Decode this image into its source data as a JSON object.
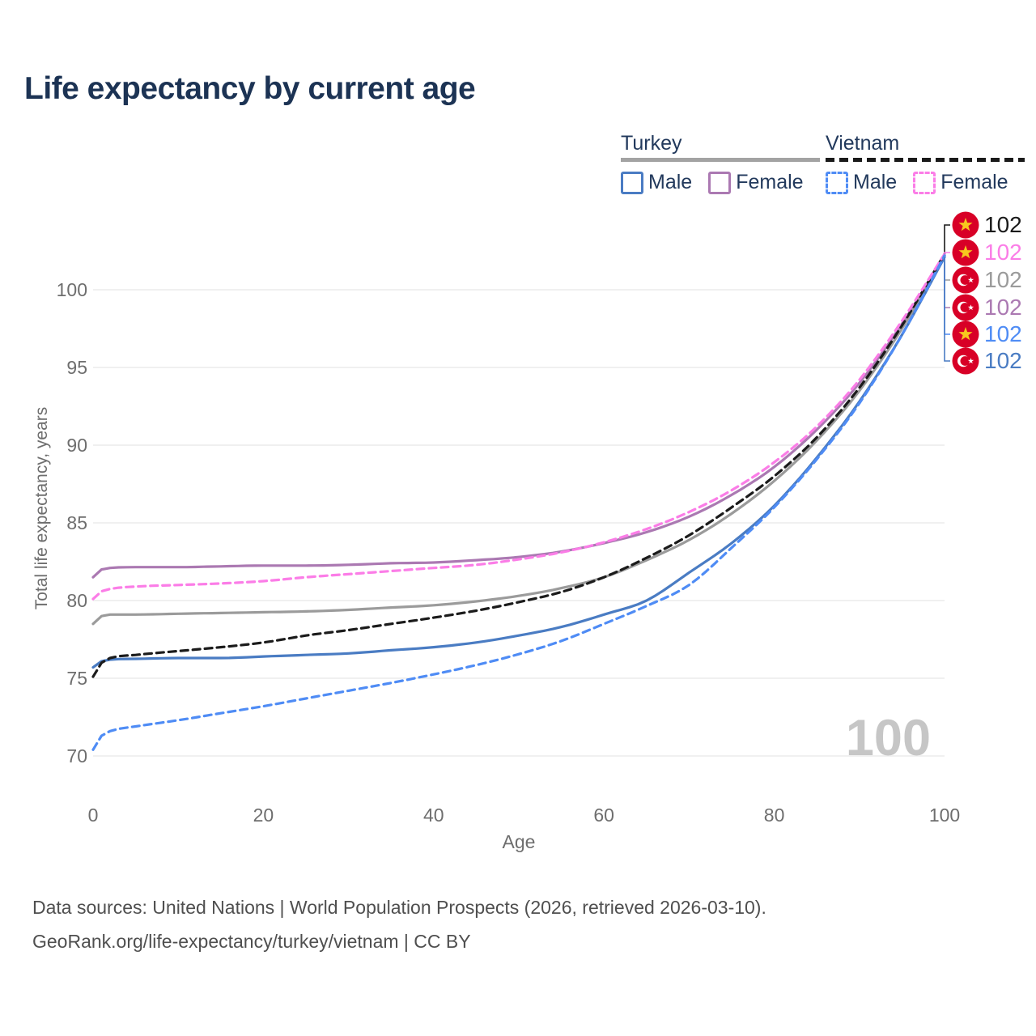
{
  "title": "Life expectancy by current age",
  "legend": {
    "groups": [
      {
        "label": "Turkey",
        "underline_style": "solid",
        "underline_color": "#a3a3a3",
        "items": [
          {
            "label": "Male",
            "color": "#4a7cc3",
            "dashed": false
          },
          {
            "label": "Female",
            "color": "#ab79b2",
            "dashed": false
          }
        ]
      },
      {
        "label": "Vietnam",
        "underline_style": "dashed",
        "underline_color": "#1a1a1a",
        "items": [
          {
            "label": "Male",
            "color": "#4f8cf5",
            "dashed": true
          },
          {
            "label": "Female",
            "color": "#fb7de7",
            "dashed": true
          }
        ]
      }
    ]
  },
  "axes": {
    "y_title": "Total life expectancy, years",
    "x_title": "Age",
    "y_ticks": [
      70,
      75,
      80,
      85,
      90,
      95,
      100
    ],
    "x_ticks": [
      0,
      20,
      40,
      60,
      80,
      100
    ]
  },
  "watermark": "100",
  "flag_colors": {
    "red": "#d80027",
    "star_gold": "#f7c81e",
    "white": "#ffffff"
  },
  "end_labels": [
    {
      "flag": "vietnam",
      "value": "102",
      "color": "#1a1a1a",
      "series": "vietnam_total"
    },
    {
      "flag": "vietnam",
      "value": "102",
      "color": "#fb7de7",
      "series": "vietnam_female"
    },
    {
      "flag": "turkey",
      "value": "102",
      "color": "#9b9b9b",
      "series": "turkey_total"
    },
    {
      "flag": "turkey",
      "value": "102",
      "color": "#ab79b2",
      "series": "turkey_female"
    },
    {
      "flag": "vietnam",
      "value": "102",
      "color": "#4f8cf5",
      "series": "vietnam_male"
    },
    {
      "flag": "turkey",
      "value": "102",
      "color": "#4a7cc3",
      "series": "turkey_male"
    }
  ],
  "footer": {
    "line1": "Data sources: United Nations | World Population Prospects (2026, retrieved 2026-03-10).",
    "line2": "GeoRank.org/life-expectancy/turkey/vietnam | CC BY"
  },
  "chart_data": {
    "type": "line",
    "title": "Life expectancy by current age",
    "xlabel": "Age",
    "ylabel": "Total life expectancy, years",
    "xlim": [
      0,
      100
    ],
    "ylim": [
      67.5,
      104.5
    ],
    "grid": "horizontal",
    "x": [
      0,
      1,
      2,
      5,
      10,
      15,
      20,
      25,
      30,
      35,
      40,
      45,
      50,
      55,
      60,
      65,
      70,
      75,
      80,
      85,
      90,
      95,
      100
    ],
    "series": [
      {
        "id": "turkey_female",
        "name": "Turkey Female",
        "color": "#ab79b2",
        "dashed": false,
        "values": [
          81.5,
          82.0,
          82.1,
          82.15,
          82.15,
          82.2,
          82.25,
          82.25,
          82.3,
          82.4,
          82.45,
          82.6,
          82.8,
          83.15,
          83.7,
          84.4,
          85.4,
          86.8,
          88.6,
          91.0,
          94.0,
          97.8,
          102.2
        ]
      },
      {
        "id": "turkey_total",
        "name": "Turkey Both sexes",
        "color": "#9b9b9b",
        "dashed": false,
        "values": [
          78.5,
          79.0,
          79.1,
          79.1,
          79.15,
          79.2,
          79.25,
          79.3,
          79.4,
          79.55,
          79.7,
          79.95,
          80.3,
          80.8,
          81.5,
          82.6,
          83.9,
          85.6,
          87.7,
          90.3,
          93.5,
          97.5,
          102.2
        ]
      },
      {
        "id": "turkey_male",
        "name": "Turkey Male",
        "color": "#4a7cc3",
        "dashed": false,
        "values": [
          75.7,
          76.1,
          76.2,
          76.25,
          76.3,
          76.3,
          76.4,
          76.5,
          76.6,
          76.8,
          77.0,
          77.3,
          77.75,
          78.3,
          79.1,
          80.0,
          81.8,
          83.7,
          86.1,
          89.2,
          92.8,
          97.1,
          102.1
        ]
      },
      {
        "id": "vietnam_total",
        "name": "Vietnam Both sexes",
        "color": "#1b1b1b",
        "dashed": true,
        "values": [
          75.1,
          76.0,
          76.3,
          76.5,
          76.75,
          77.0,
          77.3,
          77.75,
          78.1,
          78.5,
          78.9,
          79.35,
          79.9,
          80.55,
          81.5,
          82.75,
          84.2,
          86.0,
          88.0,
          90.5,
          93.7,
          97.7,
          102.3
        ]
      },
      {
        "id": "vietnam_female",
        "name": "Vietnam Female",
        "color": "#fb7de7",
        "dashed": true,
        "values": [
          80.1,
          80.6,
          80.75,
          80.9,
          81.0,
          81.1,
          81.25,
          81.5,
          81.7,
          81.9,
          82.1,
          82.3,
          82.65,
          83.1,
          83.75,
          84.6,
          85.7,
          87.1,
          88.9,
          91.2,
          94.2,
          98.0,
          102.3
        ]
      },
      {
        "id": "vietnam_male",
        "name": "Vietnam Male",
        "color": "#4f8cf5",
        "dashed": true,
        "values": [
          70.4,
          71.3,
          71.6,
          71.9,
          72.3,
          72.75,
          73.2,
          73.7,
          74.2,
          74.7,
          75.25,
          75.85,
          76.55,
          77.4,
          78.5,
          79.65,
          81.0,
          83.4,
          86.0,
          89.1,
          92.7,
          97.1,
          102.2
        ]
      }
    ]
  }
}
